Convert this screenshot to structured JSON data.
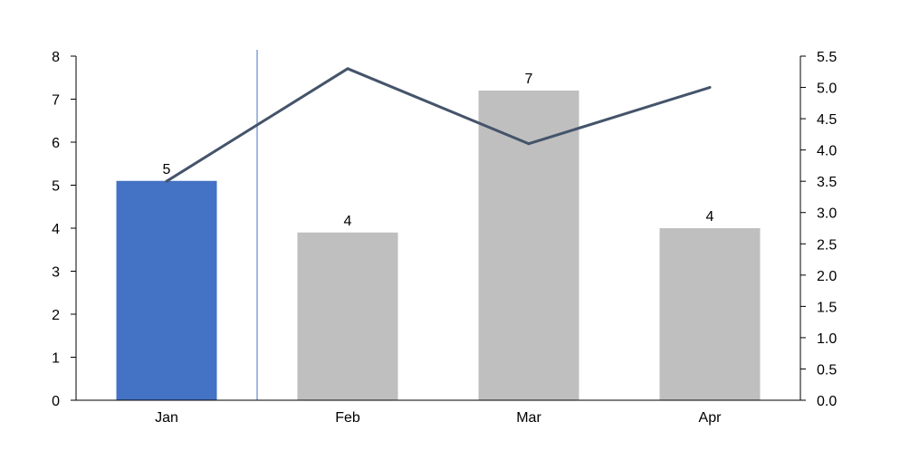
{
  "chart_data": {
    "type": "bar",
    "categories": [
      "Jan",
      "Feb",
      "Mar",
      "Apr"
    ],
    "series": [
      {
        "type": "bar",
        "axis": "left",
        "values": [
          5.1,
          3.9,
          7.2,
          4.0
        ],
        "data_labels": [
          "5",
          "4",
          "7",
          "4"
        ],
        "highlight_index": 0,
        "color": "#BFBFBF",
        "highlight_color": "#4472C4"
      },
      {
        "type": "line",
        "axis": "right",
        "values": [
          3.5,
          5.3,
          4.1,
          5.0
        ],
        "color": "#44546A"
      }
    ],
    "y_left": {
      "lim": [
        0,
        8
      ],
      "ticks": [
        "0",
        "1",
        "2",
        "3",
        "4",
        "5",
        "6",
        "7",
        "8"
      ]
    },
    "y_right": {
      "lim": [
        0,
        5.5
      ],
      "ticks": [
        "0.0",
        "0.5",
        "1.0",
        "1.5",
        "2.0",
        "2.5",
        "3.0",
        "3.5",
        "4.0",
        "4.5",
        "5.0",
        "5.5"
      ]
    },
    "marker_line": {
      "between": [
        "Jan",
        "Feb"
      ],
      "color": "#4472C4"
    },
    "title": "",
    "xlabel": "",
    "ylabel": "",
    "grid": false,
    "legend": "none"
  }
}
